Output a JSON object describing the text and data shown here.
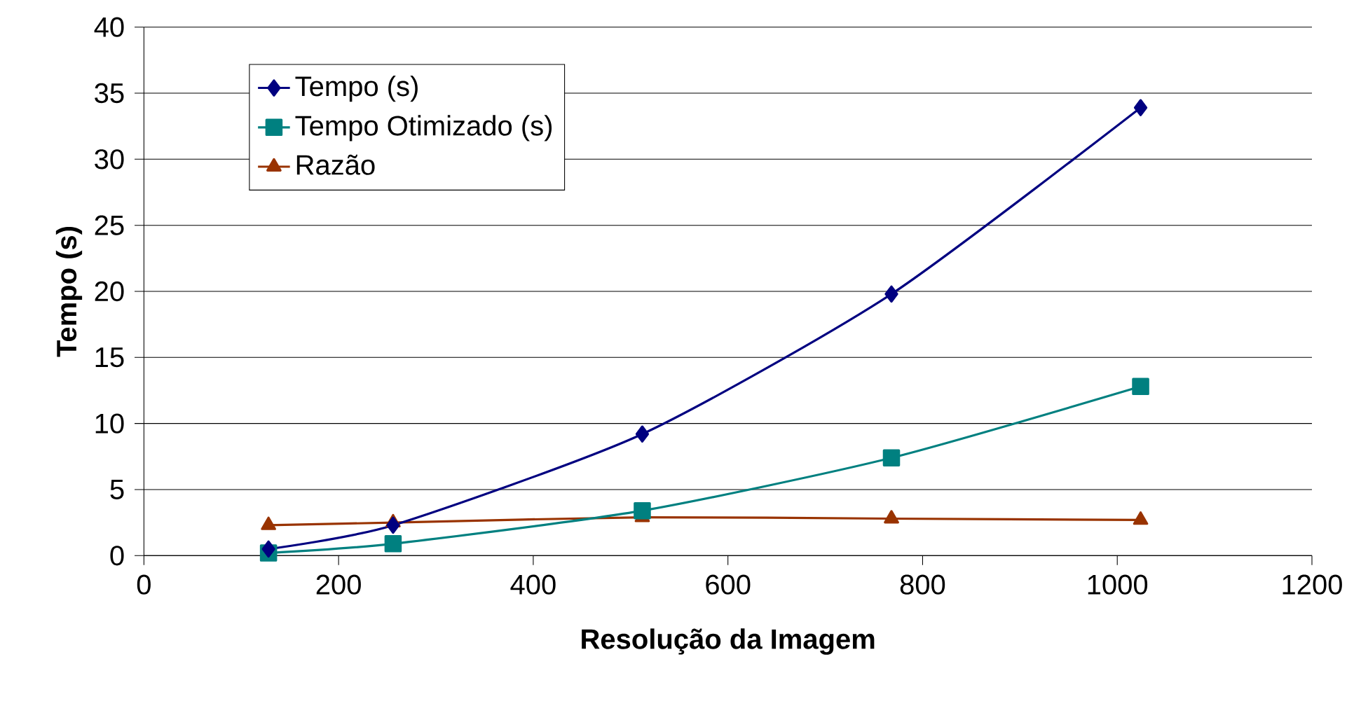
{
  "chart_data": {
    "type": "line",
    "xlabel": "Resolução da Imagem",
    "ylabel": "Tempo (s)",
    "x": [
      128,
      256,
      512,
      768,
      1024
    ],
    "series": [
      {
        "name": "Tempo (s)",
        "color": "#000080",
        "marker": "diamond",
        "values": [
          0.5,
          2.3,
          9.2,
          19.8,
          33.9
        ]
      },
      {
        "name": "Tempo Otimizado (s)",
        "color": "#008080",
        "marker": "square",
        "values": [
          0.2,
          0.9,
          3.4,
          7.4,
          12.8
        ]
      },
      {
        "name": "Razão",
        "color": "#993300",
        "marker": "triangle",
        "values": [
          2.3,
          2.5,
          2.9,
          2.8,
          2.7
        ]
      }
    ],
    "xlim": [
      0,
      1200
    ],
    "xticks": [
      0,
      200,
      400,
      600,
      800,
      1000,
      1200
    ],
    "ylim": [
      0,
      40
    ],
    "yticks": [
      0,
      5,
      10,
      15,
      20,
      25,
      30,
      35,
      40
    ],
    "grid": "y",
    "legend": "top left"
  }
}
